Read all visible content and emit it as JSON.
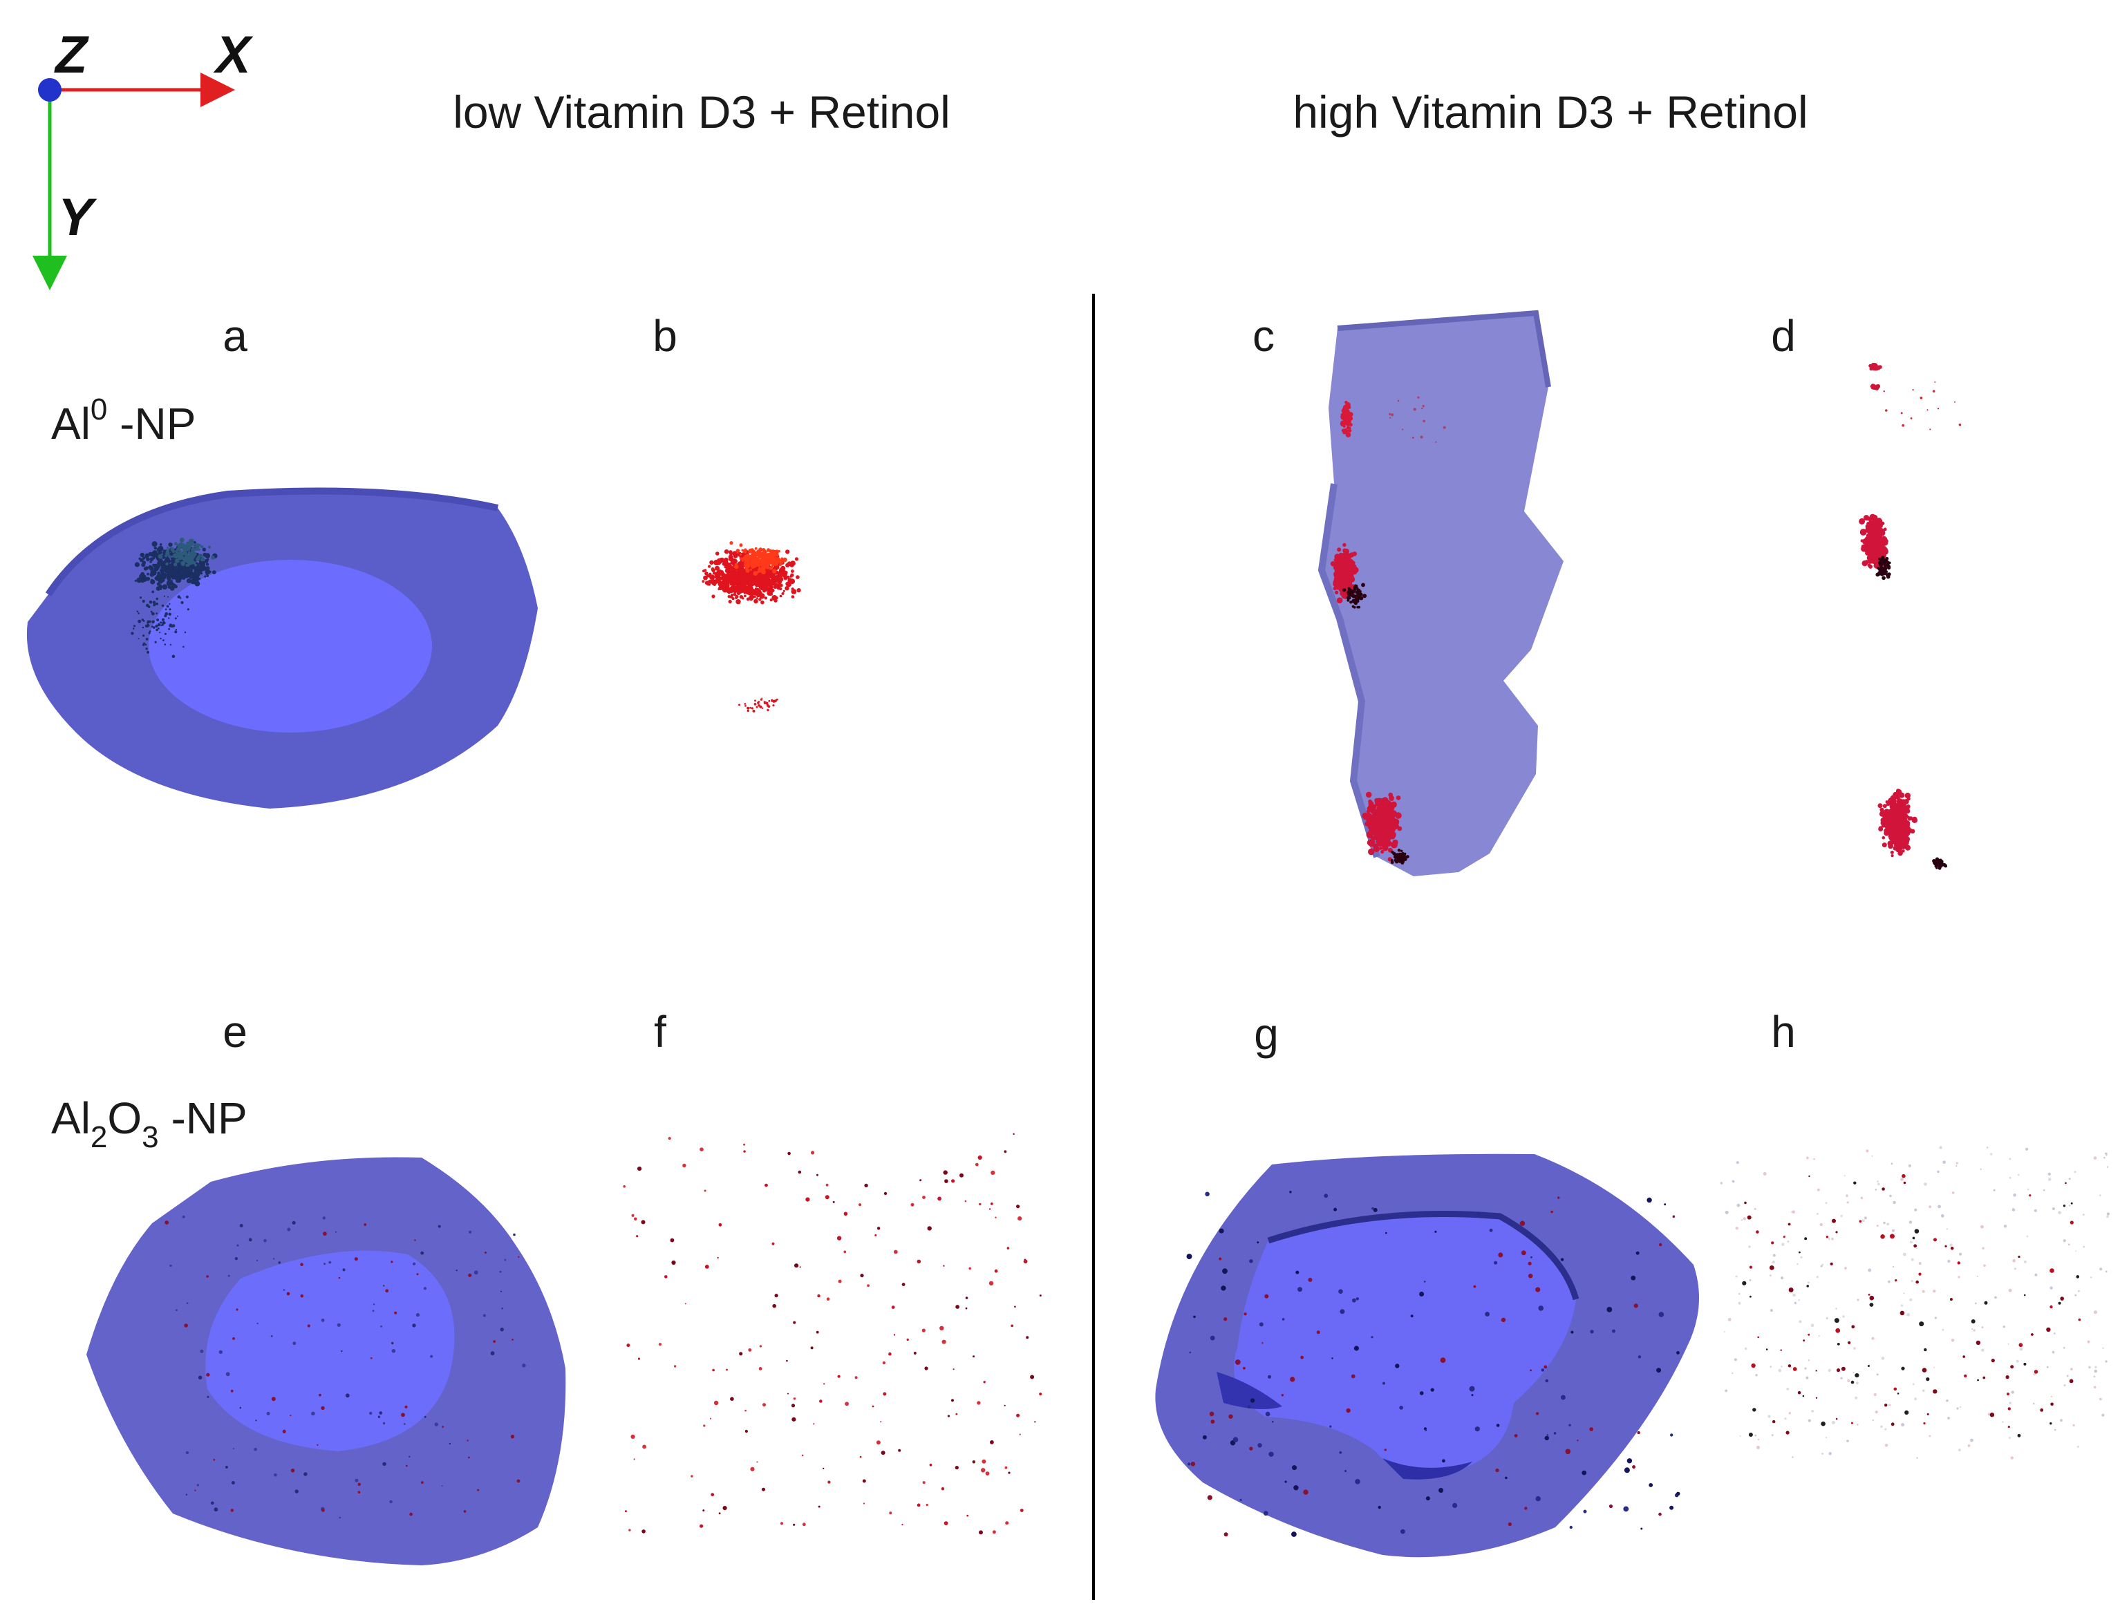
{
  "figure": {
    "axes_indicator": {
      "z": "Z",
      "x": "X",
      "y": "Y"
    },
    "columns": {
      "left": "low Vitamin D3 + Retinol",
      "right": "high Vitamin D3 + Retinol"
    },
    "rows": {
      "top": {
        "base": "Al",
        "sup": "0",
        "suffix": " -NP"
      },
      "bottom": {
        "part1": "Al",
        "sub1": "2",
        "part2": "O",
        "sub2": "3",
        "suffix": " -NP"
      }
    },
    "panels": [
      "a",
      "b",
      "c",
      "d",
      "e",
      "f",
      "g",
      "h"
    ]
  },
  "colors": {
    "cell_outer": "#5b5ec8",
    "cell_inner": "#6c6cff",
    "cell_pale": "#8585d2",
    "particle_red": "#e0141e",
    "cluster_dark": "#1b2f62",
    "x_axis": "#e02020",
    "y_axis": "#1fbf1f",
    "z_axis": "#2233cc"
  }
}
